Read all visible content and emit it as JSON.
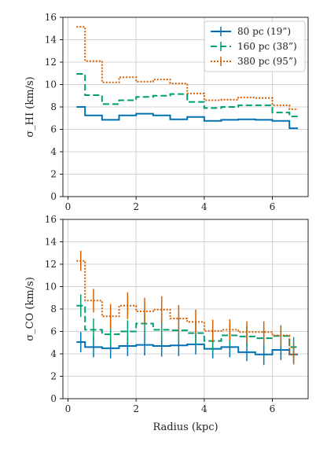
{
  "chart_data": [
    {
      "type": "line",
      "title": "",
      "xlabel": "",
      "ylabel": "σ_HI (km/s)",
      "xlim": [
        -0.15,
        7.05
      ],
      "ylim": [
        0,
        16
      ],
      "xticks": [
        0,
        2,
        4,
        6
      ],
      "yticks": [
        0,
        2,
        4,
        6,
        8,
        10,
        12,
        14,
        16
      ],
      "grid": true,
      "legend_position": "top-right",
      "bin_edges": [
        0.25,
        0.5,
        1.0,
        1.5,
        2.0,
        2.5,
        3.0,
        3.5,
        4.0,
        4.5,
        5.0,
        5.5,
        6.0,
        6.5,
        6.75
      ],
      "series": [
        {
          "name": "80 pc (19”)",
          "color": "#0072B2",
          "style": "solid",
          "values": [
            8.0,
            7.25,
            6.85,
            7.25,
            7.4,
            7.25,
            6.9,
            7.1,
            6.75,
            6.85,
            6.9,
            6.85,
            6.75,
            6.1
          ]
        },
        {
          "name": "160 pc (38”)",
          "color": "#009E73",
          "style": "dashed",
          "values": [
            10.95,
            9.05,
            8.25,
            8.6,
            8.9,
            9.0,
            9.15,
            8.45,
            7.9,
            8.0,
            8.15,
            8.15,
            7.5,
            7.15
          ]
        },
        {
          "name": "380 pc (95”)",
          "color": "#D55E00",
          "style": "dotted",
          "values": [
            15.15,
            12.1,
            10.2,
            10.65,
            10.25,
            10.45,
            10.1,
            9.2,
            8.6,
            8.65,
            8.85,
            8.8,
            8.15,
            7.8
          ]
        }
      ]
    },
    {
      "type": "line",
      "title": "",
      "xlabel": "Radius (kpc)",
      "ylabel": "σ_CO (km/s)",
      "xlim": [
        -0.15,
        7.05
      ],
      "ylim": [
        0,
        16
      ],
      "xticks": [
        0,
        2,
        4,
        6
      ],
      "yticks": [
        0,
        2,
        4,
        6,
        8,
        10,
        12,
        14,
        16
      ],
      "grid": true,
      "bin_edges": [
        0.25,
        0.5,
        1.0,
        1.5,
        2.0,
        2.5,
        3.0,
        3.5,
        4.0,
        4.5,
        5.0,
        5.5,
        6.0,
        6.5,
        6.75
      ],
      "series": [
        {
          "name": "80 pc (19”)",
          "color": "#0072B2",
          "style": "solid",
          "values": [
            5.05,
            4.6,
            4.5,
            4.7,
            4.8,
            4.7,
            4.75,
            4.85,
            4.45,
            4.6,
            4.15,
            3.95,
            4.35,
            3.95
          ],
          "err": [
            0.9,
            0.9,
            0.9,
            0.9,
            0.95,
            0.95,
            0.95,
            0.9,
            0.85,
            0.9,
            0.8,
            0.95,
            0.9,
            0.8
          ]
        },
        {
          "name": "160 pc (38”)",
          "color": "#009E73",
          "style": "dashed",
          "values": [
            8.3,
            6.15,
            5.75,
            6.0,
            6.7,
            6.15,
            6.1,
            5.85,
            5.15,
            5.65,
            5.55,
            5.4,
            5.6,
            4.6
          ],
          "err": [
            1.0,
            1.0,
            1.0,
            1.0,
            1.0,
            1.0,
            1.0,
            1.0,
            1.0,
            1.0,
            0.9,
            0.9,
            0.9,
            0.9
          ]
        },
        {
          "name": "380 pc (95”)",
          "color": "#D55E00",
          "style": "dotted",
          "values": [
            12.3,
            8.75,
            7.35,
            8.3,
            7.8,
            7.95,
            7.15,
            6.85,
            6.05,
            6.15,
            5.95,
            5.95,
            5.65,
            3.95
          ],
          "err": [
            0.9,
            1.05,
            1.1,
            1.2,
            1.2,
            1.2,
            1.2,
            1.1,
            1.0,
            0.95,
            0.95,
            0.95,
            0.9,
            0.9
          ]
        }
      ]
    }
  ]
}
